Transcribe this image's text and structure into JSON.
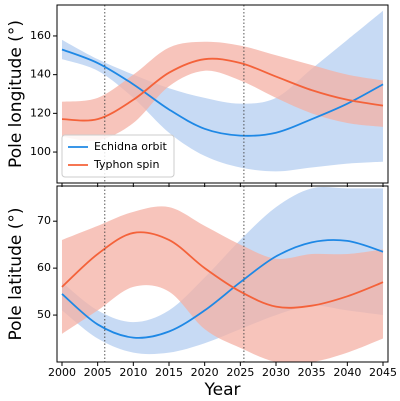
{
  "chart_data": [
    {
      "type": "line",
      "ylabel": "Pole longitude (°)",
      "x": [
        2000,
        2005,
        2010,
        2015,
        2020,
        2025,
        2030,
        2035,
        2040,
        2045
      ],
      "xlim": [
        1999.3,
        2045.7
      ],
      "xticks": [
        2000,
        2005,
        2010,
        2015,
        2020,
        2025,
        2030,
        2035,
        2040,
        2045
      ],
      "ylim": [
        84,
        176
      ],
      "yticks": [
        100,
        120,
        140,
        160
      ],
      "reference_lines": [
        2006,
        2025.5
      ],
      "legend": "lower left",
      "series": [
        {
          "name": "Echidna orbit",
          "color": "#1e88e5",
          "band_color": "#b4cdf0",
          "values": [
            153,
            146,
            135,
            122,
            112,
            108.5,
            110,
            117,
            125,
            135
          ],
          "lower": [
            148,
            142,
            128,
            110,
            98,
            92,
            90,
            92,
            94,
            95
          ],
          "upper": [
            158,
            148,
            140,
            133,
            128,
            125,
            128,
            143,
            158,
            173
          ]
        },
        {
          "name": "Typhon spin",
          "color": "#f4623a",
          "band_color": "#f4b0a4",
          "values": [
            117,
            117,
            127,
            141,
            148,
            146,
            139,
            132,
            127,
            124
          ],
          "lower": [
            108,
            106,
            115,
            134,
            142,
            137,
            128,
            120,
            115,
            113
          ],
          "upper": [
            126,
            128,
            140,
            154,
            157,
            155,
            150,
            145,
            140,
            137
          ]
        }
      ]
    },
    {
      "type": "line",
      "ylabel": "Pole latitude (°)",
      "xlabel": "Year",
      "x": [
        2000,
        2005,
        2010,
        2015,
        2020,
        2025,
        2030,
        2035,
        2040,
        2045
      ],
      "xlim": [
        1999.3,
        2045.7
      ],
      "xticks": [
        2000,
        2005,
        2010,
        2015,
        2020,
        2025,
        2030,
        2035,
        2040,
        2045
      ],
      "ylim": [
        40,
        77.5
      ],
      "yticks": [
        50,
        60,
        70
      ],
      "reference_lines": [
        2006,
        2025.5
      ],
      "series": [
        {
          "name": "Echidna orbit",
          "color": "#1e88e5",
          "band_color": "#b4cdf0",
          "values": [
            54.5,
            48,
            45.2,
            46.5,
            51,
            57,
            62.5,
            65.5,
            65.8,
            63.5
          ],
          "lower": [
            51,
            45,
            42,
            42,
            44,
            47,
            50,
            52,
            51,
            50
          ],
          "upper": [
            57,
            51,
            48.5,
            51,
            58,
            66,
            73,
            77,
            77,
            77
          ]
        },
        {
          "name": "Typhon spin",
          "color": "#f4623a",
          "band_color": "#f4b0a4",
          "values": [
            56,
            63,
            67.5,
            66,
            60,
            55,
            51.8,
            52,
            54,
            57
          ],
          "lower": [
            46,
            51,
            56,
            55,
            47,
            43,
            40,
            40,
            42,
            45
          ],
          "upper": [
            66,
            69,
            72,
            73,
            69,
            65,
            62,
            63,
            63,
            64
          ]
        }
      ]
    }
  ]
}
